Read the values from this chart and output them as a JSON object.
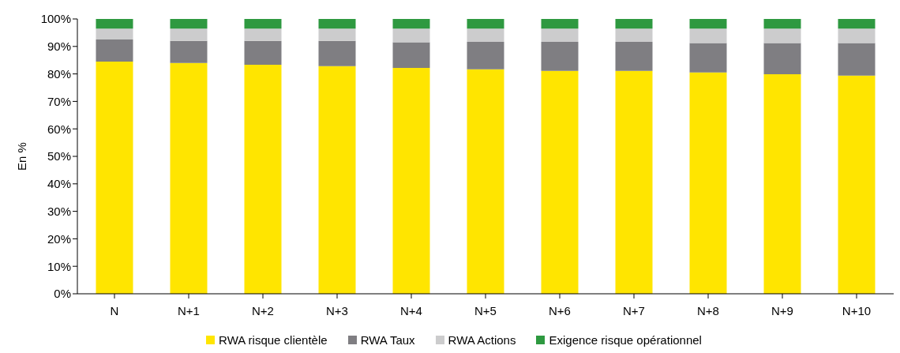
{
  "chart_data": {
    "type": "bar",
    "stacked": true,
    "ylabel": "En %",
    "categories": [
      "N",
      "N+1",
      "N+2",
      "N+3",
      "N+4",
      "N+5",
      "N+6",
      "N+7",
      "N+8",
      "N+9",
      "N+10"
    ],
    "series": [
      {
        "name": "RWA risque clientèle",
        "color": "#ffe500",
        "values": [
          84.5,
          84,
          83.3,
          82.8,
          82.2,
          81.7,
          81.1,
          81.1,
          80.5,
          79.9,
          79.4
        ]
      },
      {
        "name": "RWA Taux",
        "color": "#7f7e82",
        "values": [
          8,
          8,
          8.7,
          9.2,
          9.3,
          10,
          10.6,
          10.6,
          10.7,
          11.3,
          11.8
        ]
      },
      {
        "name": "RWA Actions",
        "color": "#cccccd",
        "values": [
          4,
          4.5,
          4.5,
          4.5,
          5,
          4.8,
          4.8,
          4.8,
          5.3,
          5.3,
          5.3
        ]
      },
      {
        "name": "Exigence risque opérationnel",
        "color": "#2e9940",
        "values": [
          3.5,
          3.5,
          3.5,
          3.5,
          3.5,
          3.5,
          3.5,
          3.5,
          3.5,
          3.5,
          3.5
        ]
      }
    ],
    "ylim": [
      0,
      100
    ],
    "yticks": [
      {
        "value": 0,
        "label": "0%"
      },
      {
        "value": 10,
        "label": "10%"
      },
      {
        "value": 20,
        "label": "20%"
      },
      {
        "value": 30,
        "label": "30%"
      },
      {
        "value": 40,
        "label": "40%"
      },
      {
        "value": 50,
        "label": "50%"
      },
      {
        "value": 60,
        "label": "60%"
      },
      {
        "value": 70,
        "label": "70%"
      },
      {
        "value": 80,
        "label": "80%"
      },
      {
        "value": 90,
        "label": "90%"
      },
      {
        "value": 100,
        "label": "100%"
      }
    ],
    "grid": false,
    "legend": "bottom"
  }
}
